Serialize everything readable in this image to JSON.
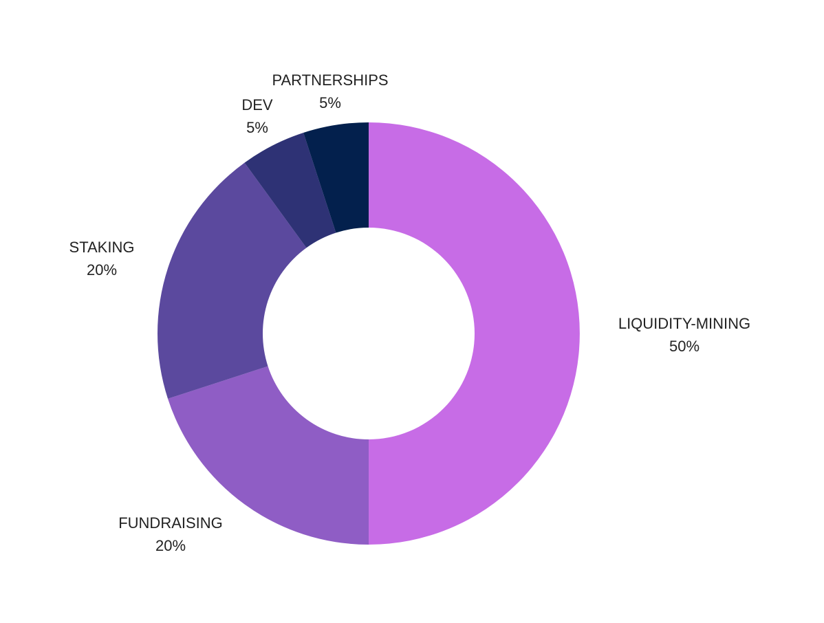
{
  "chart_data": {
    "type": "pie",
    "donut": true,
    "title": "",
    "categories": [
      "LIQUIDITY-MINING",
      "FUNDRAISING",
      "STAKING",
      "DEV",
      "PARTNERSHIPS"
    ],
    "values": [
      50,
      20,
      20,
      5,
      5
    ],
    "labels": [
      "50%",
      "20%",
      "20%",
      "5%",
      "5%"
    ],
    "colors": [
      "#c76ce6",
      "#8f5dc5",
      "#5b499e",
      "#2e3275",
      "#03204d"
    ],
    "legend": "none"
  }
}
